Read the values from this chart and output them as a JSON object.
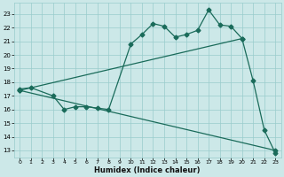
{
  "xlabel": "Humidex (Indice chaleur)",
  "bg_color": "#cce8e8",
  "grid_color": "#99cccc",
  "line_color": "#1a6b5a",
  "xlim": [
    -0.5,
    23.5
  ],
  "ylim": [
    12.5,
    23.8
  ],
  "yticks": [
    13,
    14,
    15,
    16,
    17,
    18,
    19,
    20,
    21,
    22,
    23
  ],
  "xticks": [
    0,
    1,
    2,
    3,
    4,
    5,
    6,
    7,
    8,
    9,
    10,
    11,
    12,
    13,
    14,
    15,
    16,
    17,
    18,
    19,
    20,
    21,
    22,
    23
  ],
  "series1_x": [
    0,
    1,
    3,
    4,
    5,
    6,
    7,
    8,
    10,
    11,
    12,
    13,
    14,
    15,
    16,
    17,
    18,
    19,
    20,
    21,
    22,
    23
  ],
  "series1_y": [
    17.5,
    17.6,
    17.0,
    16.0,
    16.2,
    16.2,
    16.1,
    16.0,
    20.8,
    21.5,
    22.3,
    22.1,
    21.3,
    21.5,
    21.8,
    23.3,
    22.2,
    22.1,
    21.2,
    18.1,
    14.5,
    12.8
  ],
  "series2_x": [
    0,
    23
  ],
  "series2_y": [
    17.4,
    13.0
  ],
  "series3_x": [
    0,
    20
  ],
  "series3_y": [
    17.4,
    21.2
  ],
  "markersize": 2.5,
  "linewidth": 0.9
}
